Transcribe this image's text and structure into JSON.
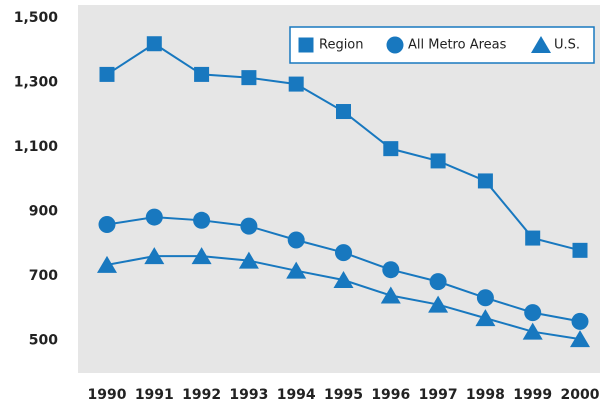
{
  "chart_data": {
    "type": "line",
    "categories": [
      "1990",
      "1991",
      "1992",
      "1993",
      "1994",
      "1995",
      "1996",
      "1997",
      "1998",
      "1999",
      "2000"
    ],
    "series": [
      {
        "name": "Region",
        "color": "#1878bf",
        "marker": "square",
        "values": [
          1325,
          1420,
          1325,
          1315,
          1295,
          1210,
          1095,
          1057,
          995,
          818,
          780
        ]
      },
      {
        "name": "All Metro Areas",
        "color": "#1878bf",
        "marker": "circle",
        "values": [
          860,
          883,
          873,
          855,
          812,
          773,
          720,
          683,
          633,
          587,
          560
        ]
      },
      {
        "name": "U.S.",
        "color": "#1878bf",
        "marker": "triangle",
        "values": [
          735,
          762,
          762,
          748,
          717,
          688,
          640,
          612,
          570,
          528,
          505
        ]
      }
    ],
    "ylim": [
      400,
      1540
    ],
    "yticks": [
      500,
      700,
      900,
      {
        "value": 1100,
        "label": "1,100"
      },
      {
        "value": 1300,
        "label": "1,300"
      },
      {
        "value": 1500,
        "label": "1,500"
      }
    ],
    "grid": false,
    "legend": "upper right"
  }
}
